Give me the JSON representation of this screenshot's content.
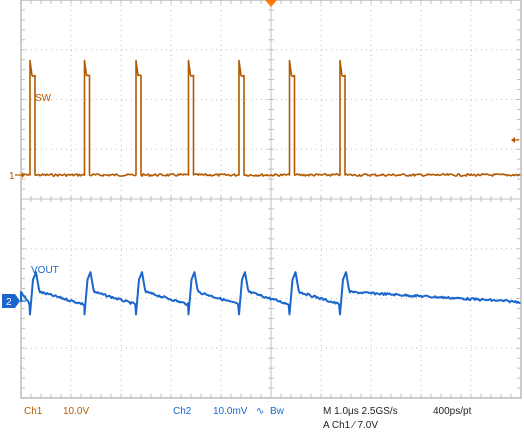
{
  "chart_data": {
    "type": "line",
    "title": "",
    "grid": true,
    "x_unit": "µs",
    "xlim": [
      0,
      10
    ],
    "x_divisions": 10,
    "y_divisions": 8,
    "series": [
      {
        "name": "SW",
        "channel": "Ch1",
        "scale": "10.0V",
        "color": "#b35900",
        "marker": "1",
        "edge_times_us": [
          0.18,
          0.28,
          1.27,
          1.37,
          2.3,
          2.4,
          3.35,
          3.45,
          4.36,
          4.46,
          5.37,
          5.47,
          6.38,
          6.48
        ],
        "levels_div": {
          "low": 0.0,
          "high": 2.0,
          "spike": 2.3
        }
      },
      {
        "name": "VOUT",
        "channel": "Ch2",
        "scale": "10.0mV",
        "color": "#1a66cc",
        "marker": "2",
        "ripple_div": {
          "rest": 0.0,
          "peak": 0.5,
          "trough": -0.35
        }
      }
    ],
    "readout": {
      "ch1": "Ch1",
      "ch1_scale": "10.0V",
      "ch2": "Ch2",
      "ch2_scale": "10.0mV",
      "bw_symbol": "∿",
      "bw": "Bw",
      "timebase": "M 1.0µs 2.5GS/s",
      "resolution": "400ps/pt",
      "trigger": "A  Ch1  ⁄  7.0V"
    },
    "colors": {
      "grid": "#bfbfbf",
      "frame": "#9a9a9a",
      "trigger_marker": "#ff7a00",
      "text_ch1": "#b35900",
      "text_ch2": "#1a66cc",
      "text_black": "#222222"
    }
  }
}
